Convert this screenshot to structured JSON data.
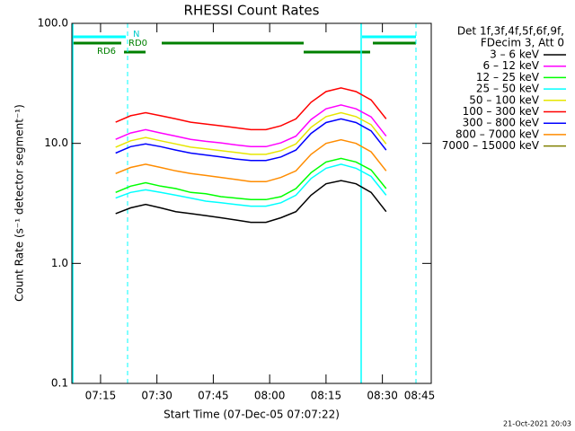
{
  "chart_data": {
    "type": "line",
    "title": "RHESSI Count Rates",
    "xlabel": "Start Time (07-Dec-05 07:07:22)",
    "ylabel": "Count Rate (s⁻¹ detector segment⁻¹)",
    "legend_title": [
      "Det 1f,3f,4f,5f,6f,9f,",
      "FDecim 3, Att 0"
    ],
    "footer": "21-Oct-2021 20:03",
    "annotations": [
      "N",
      "RD0",
      "RD6"
    ],
    "log_y": true,
    "legend": "right",
    "xlim": [
      "07:07:22",
      "08:43:00"
    ],
    "xticks": [
      "07:15",
      "07:30",
      "07:45",
      "08:00",
      "08:15",
      "08:30",
      "08:45"
    ],
    "ylim": [
      0.1,
      100
    ],
    "yticks": [
      {
        "value": 100,
        "label": "100.0"
      },
      {
        "value": 10,
        "label": "10.0"
      },
      {
        "value": 1,
        "label": "1.0"
      },
      0.1
    ],
    "x": [
      "07:19",
      "07:23",
      "07:27",
      "07:31",
      "07:35",
      "07:39",
      "07:43",
      "07:47",
      "07:51",
      "07:55",
      "07:59",
      "08:03",
      "08:07",
      "08:11",
      "08:15",
      "08:19",
      "08:23",
      "08:27",
      "08:31"
    ],
    "series": [
      {
        "name": "3 – 6 keV",
        "color": "#000000",
        "values": [
          2.6,
          2.9,
          3.1,
          2.9,
          2.7,
          2.6,
          2.5,
          2.4,
          2.3,
          2.2,
          2.2,
          2.4,
          2.7,
          3.7,
          4.6,
          4.9,
          4.6,
          3.9,
          2.7
        ]
      },
      {
        "name": "6 – 12 keV",
        "color": "#ff00ff",
        "values": [
          10.8,
          12.2,
          13,
          12.2,
          11.5,
          10.8,
          10.4,
          10.1,
          9.7,
          9.4,
          9.4,
          10.1,
          11.5,
          15.8,
          19.4,
          20.9,
          19.4,
          16.6,
          11.5
        ]
      },
      {
        "name": "12 – 25 keV",
        "color": "#00ff00",
        "values": [
          3.9,
          4.4,
          4.7,
          4.4,
          4.2,
          3.9,
          3.8,
          3.6,
          3.5,
          3.4,
          3.4,
          3.6,
          4.2,
          5.7,
          7,
          7.5,
          7,
          6,
          4.2
        ]
      },
      {
        "name": "25 – 50 keV",
        "color": "#00ffff",
        "values": [
          3.5,
          3.9,
          4.1,
          3.9,
          3.7,
          3.5,
          3.3,
          3.2,
          3.1,
          3,
          3,
          3.2,
          3.7,
          5.1,
          6.2,
          6.7,
          6.2,
          5.3,
          3.7
        ]
      },
      {
        "name": "50 – 100 keV",
        "color": "#e6e600",
        "values": [
          9.3,
          10.5,
          11.2,
          10.5,
          9.9,
          9.3,
          9,
          8.7,
          8.4,
          8.1,
          8.1,
          8.7,
          9.9,
          13.6,
          16.7,
          18,
          16.7,
          14.3,
          9.9
        ]
      },
      {
        "name": "100 – 300 keV",
        "color": "#ff0000",
        "values": [
          15,
          17,
          18,
          17,
          16,
          15,
          14.5,
          14,
          13.5,
          13,
          13,
          14,
          16,
          22,
          27,
          29,
          27,
          23,
          16
        ]
      },
      {
        "name": "300 – 800 keV",
        "color": "#0000ff",
        "values": [
          8.3,
          9.4,
          9.9,
          9.4,
          8.8,
          8.3,
          8,
          7.7,
          7.4,
          7.2,
          7.2,
          7.7,
          8.8,
          12.1,
          14.9,
          16,
          14.9,
          12.7,
          8.8
        ]
      },
      {
        "name": "800 – 7000 keV",
        "color": "#ff8c00",
        "values": [
          5.6,
          6.3,
          6.7,
          6.3,
          5.9,
          5.6,
          5.4,
          5.2,
          5,
          4.8,
          4.8,
          5.2,
          5.9,
          8.1,
          10,
          10.7,
          10,
          8.5,
          5.9
        ]
      },
      {
        "name": "7000 – 15000 keV",
        "color": "#808000",
        "values": [
          null,
          null,
          null,
          null,
          null,
          null,
          null,
          null,
          null,
          null,
          null,
          null,
          null,
          null,
          null,
          null,
          null,
          null,
          null
        ]
      }
    ]
  }
}
